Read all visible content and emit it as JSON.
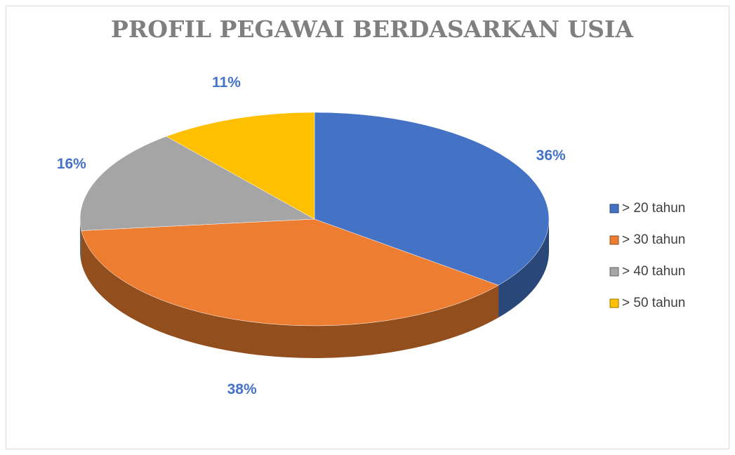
{
  "chart_data": {
    "type": "pie",
    "title": "PROFIL PEGAWAI BERDASARKAN USIA",
    "categories": [
      "> 20 tahun",
      "> 30 tahun",
      "> 40 tahun",
      "> 50 tahun"
    ],
    "values": [
      36,
      38,
      16,
      11
    ],
    "value_labels": [
      "36%",
      "38%",
      "16%",
      "11%"
    ],
    "colors": [
      "#4472c4",
      "#ed7d31",
      "#a5a5a5",
      "#ffc000"
    ],
    "legend": "right"
  }
}
